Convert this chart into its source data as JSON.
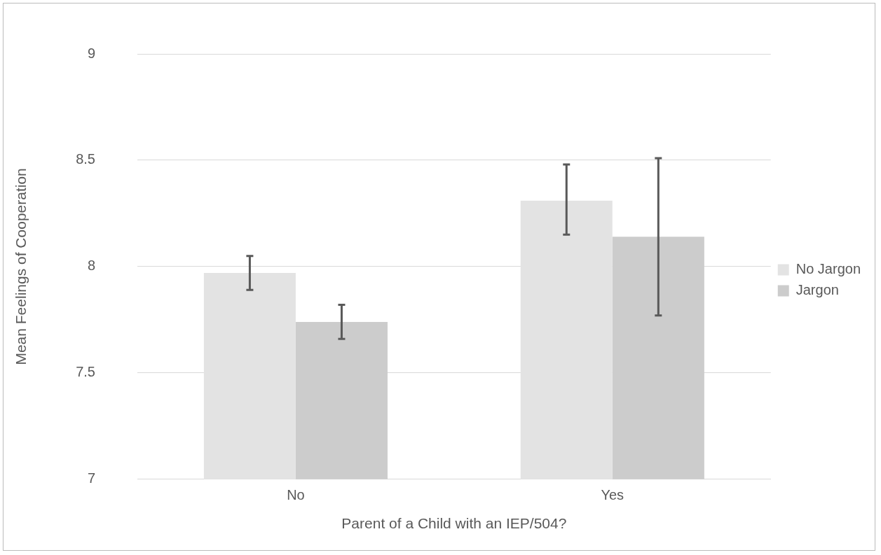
{
  "chart_data": {
    "type": "bar",
    "xlabel": "Parent of a Child with an IEP/504?",
    "ylabel": "Mean Feelings of Cooperation",
    "categories": [
      "No",
      "Yes"
    ],
    "series": [
      {
        "name": "No Jargon",
        "color": "#e3e3e3",
        "values": [
          7.97,
          8.31
        ],
        "errors": [
          [
            7.89,
            8.05
          ],
          [
            8.15,
            8.48
          ]
        ]
      },
      {
        "name": "Jargon",
        "color": "#cccccc",
        "values": [
          7.74,
          8.14
        ],
        "errors": [
          [
            7.66,
            7.82
          ],
          [
            7.77,
            8.51
          ]
        ]
      }
    ],
    "ylim": [
      7,
      9
    ],
    "yticks": [
      7,
      7.5,
      8,
      8.5,
      9
    ],
    "grid": "y",
    "legend": "right"
  }
}
